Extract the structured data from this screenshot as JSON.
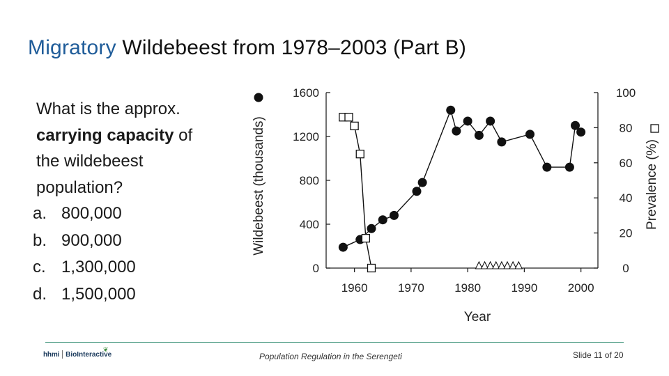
{
  "slide": {
    "title_accent": "Migratory",
    "title_rest": " Wildebeest from 1978–2003 (Part B)",
    "question_lines": [
      {
        "plain_before": "What is the approx.",
        "bold": "",
        "plain_after": ""
      },
      {
        "plain_before": "",
        "bold": "carrying capacity",
        "plain_after": " of"
      },
      {
        "plain_before": "the wildebeest",
        "bold": "",
        "plain_after": ""
      },
      {
        "plain_before": "population?",
        "bold": "",
        "plain_after": ""
      }
    ],
    "answers": [
      {
        "letter": "a.",
        "text": "800,000"
      },
      {
        "letter": "b.",
        "text": "900,000"
      },
      {
        "letter": "c.",
        "text": "1,300,000"
      },
      {
        "letter": "d.",
        "text": "1,500,000"
      }
    ],
    "footer": {
      "logo_left": "hhmi",
      "logo_right": "BioInteractive",
      "center": "Population Regulation in the Serengeti",
      "right": "Slide 11 of 20"
    }
  },
  "colors": {
    "accent": "#1f5c99",
    "footer_line": "#2d8a6e"
  },
  "chart_data": {
    "type": "line",
    "title": "",
    "xlabel": "Year",
    "ylabel": "Wildebeest (thousands)",
    "y2label": "Prevalence (%)",
    "xlim": [
      1955,
      2003
    ],
    "ylim": [
      0,
      1600
    ],
    "y2lim": [
      0,
      100
    ],
    "x_ticks": [
      1960,
      1970,
      1980,
      1990,
      2000
    ],
    "y_ticks": [
      0,
      400,
      800,
      1200,
      1600
    ],
    "y2_ticks": [
      0,
      20,
      40,
      60,
      80,
      100
    ],
    "series": [
      {
        "name": "Wildebeest",
        "axis": "left",
        "marker": "filled-circle",
        "x": [
          1958,
          1961,
          1963,
          1965,
          1967,
          1971,
          1972,
          1977,
          1978,
          1980,
          1982,
          1984,
          1986,
          1991,
          1994,
          1998,
          1999,
          2000
        ],
        "y": [
          190,
          260,
          360,
          440,
          480,
          700,
          780,
          1440,
          1250,
          1340,
          1210,
          1340,
          1150,
          1220,
          920,
          920,
          1300,
          1240
        ]
      },
      {
        "name": "Prevalence",
        "axis": "right",
        "marker": "open-square",
        "x": [
          1958,
          1959,
          1960,
          1961,
          1962,
          1963
        ],
        "y": [
          86,
          86,
          81,
          65,
          17,
          0
        ]
      },
      {
        "name": "Prevalence (zero observations)",
        "axis": "right",
        "marker": "open-triangle",
        "line": false,
        "x": [
          1982,
          1983,
          1984,
          1985,
          1986,
          1987,
          1988,
          1989
        ],
        "y": [
          0,
          0,
          0,
          0,
          0,
          0,
          0,
          0
        ]
      }
    ]
  }
}
